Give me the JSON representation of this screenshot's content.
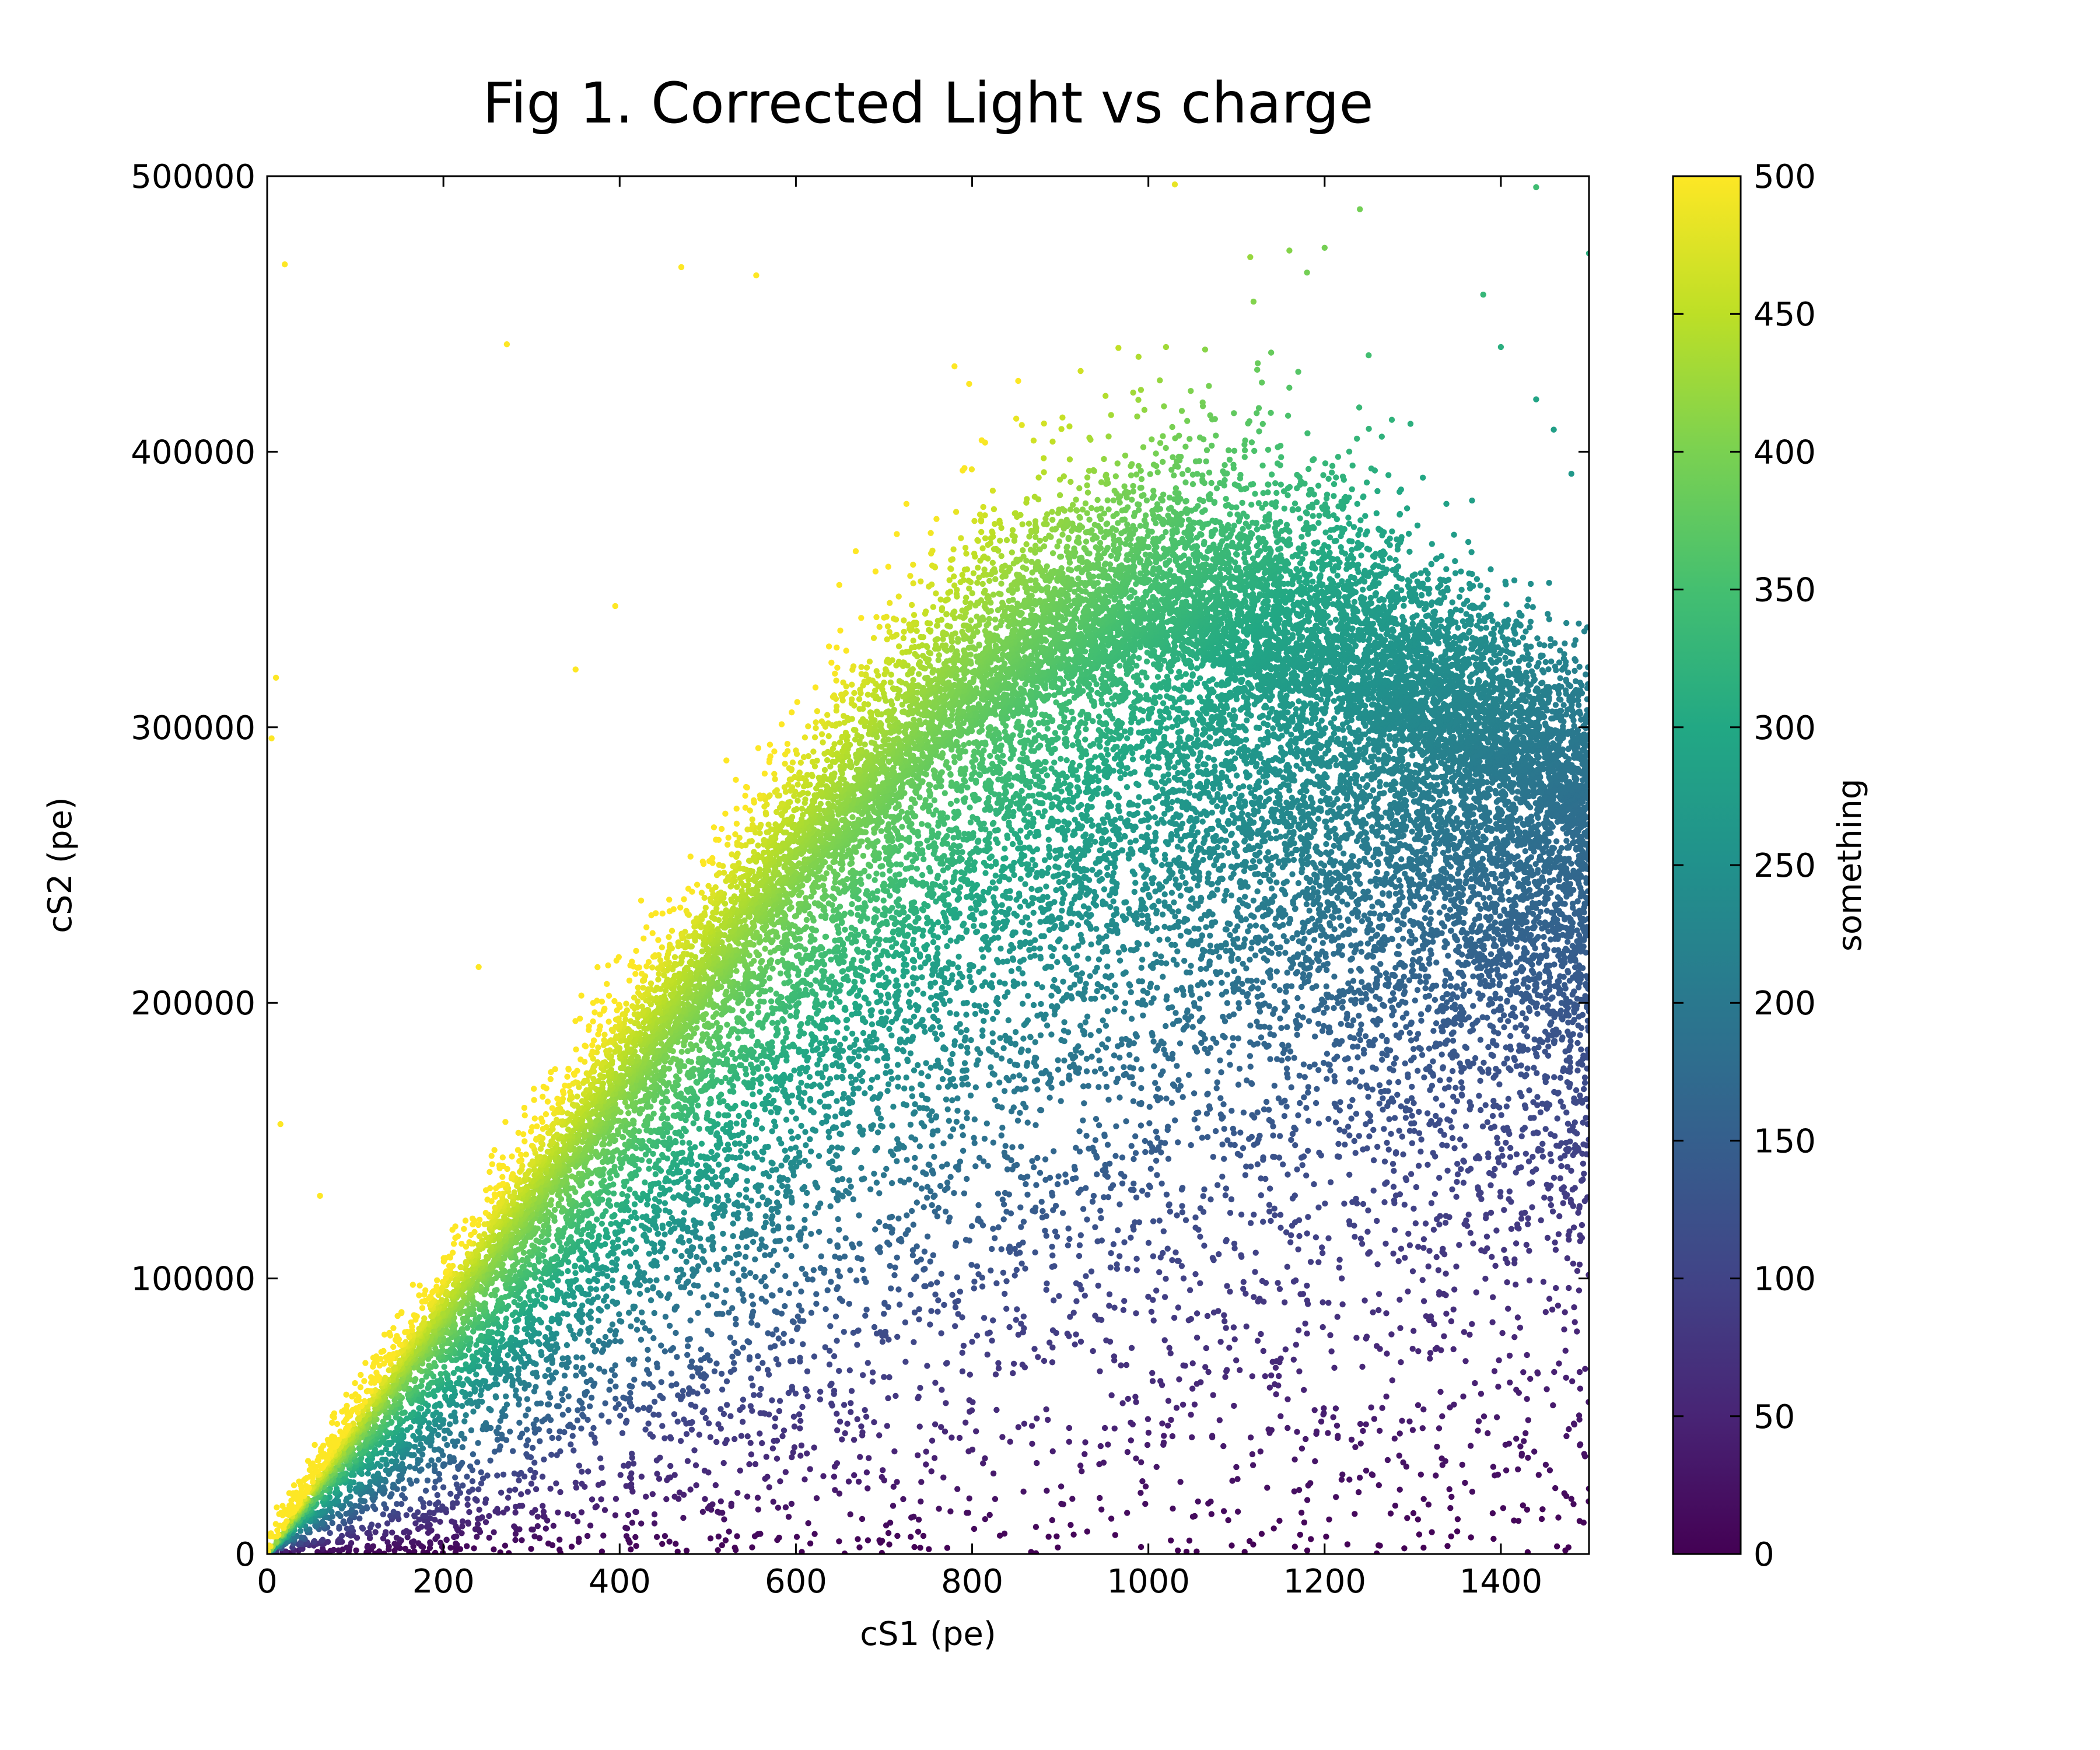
{
  "chart_data": {
    "type": "scatter",
    "title": "Fig 1. Corrected Light vs charge",
    "xlabel": "cS1 (pe)",
    "ylabel": "cS2 (pe)",
    "xlim": [
      0,
      1500
    ],
    "ylim": [
      0,
      500000
    ],
    "xticks": [
      "0",
      "200",
      "400",
      "600",
      "800",
      "1000",
      "1200",
      "1400"
    ],
    "xtick_values": [
      0,
      200,
      400,
      600,
      800,
      1000,
      1200,
      1400
    ],
    "yticks": [
      "0",
      "100000",
      "200000",
      "300000",
      "400000",
      "500000"
    ],
    "ytick_values": [
      0,
      100000,
      200000,
      300000,
      400000,
      500000
    ],
    "grid": false,
    "colorbar": {
      "label": "something",
      "range": [
        0,
        500
      ],
      "ticks": [
        "0",
        "50",
        "100",
        "150",
        "200",
        "250",
        "300",
        "350",
        "400",
        "450",
        "500"
      ],
      "tick_values": [
        0,
        50,
        100,
        150,
        200,
        250,
        300,
        350,
        400,
        450,
        500
      ],
      "colormap": "viridis"
    },
    "colormap_stops": [
      "#440154",
      "#482475",
      "#414487",
      "#355f8d",
      "#2a788e",
      "#21918c",
      "#22a884",
      "#44bf70",
      "#7ad151",
      "#bddf26",
      "#fde725"
    ],
    "point_distribution": {
      "ridge_points": [
        [
          0,
          0
        ],
        [
          200,
          80000
        ],
        [
          400,
          160000
        ],
        [
          600,
          240000
        ],
        [
          800,
          300000
        ],
        [
          1000,
          330000
        ],
        [
          1200,
          310000
        ],
        [
          1400,
          280000
        ],
        [
          1500,
          260000
        ]
      ],
      "upper_edge_points": [
        [
          0,
          10000
        ],
        [
          200,
          110000
        ],
        [
          400,
          210000
        ],
        [
          600,
          300000
        ],
        [
          800,
          380000
        ],
        [
          1000,
          410000
        ],
        [
          1200,
          400000
        ],
        [
          1400,
          350000
        ],
        [
          1500,
          330000
        ]
      ],
      "lower_edge_points": [
        [
          0,
          0
        ],
        [
          200,
          20000
        ],
        [
          400,
          60000
        ],
        [
          600,
          100000
        ],
        [
          800,
          140000
        ],
        [
          1000,
          160000
        ],
        [
          1200,
          170000
        ],
        [
          1400,
          160000
        ],
        [
          1500,
          150000
        ]
      ],
      "color_relation": "color ~ 1000 * cS2 / cS1 / 100 (points above ridge yellow, below dark purple)",
      "count": 26000
    },
    "outliers": [
      [
        20,
        468000
      ],
      [
        470,
        467000
      ],
      [
        555,
        464000
      ],
      [
        272,
        439000
      ],
      [
        395,
        344000
      ],
      [
        350,
        321000
      ],
      [
        10,
        318000
      ],
      [
        5,
        296000
      ],
      [
        240,
        213000
      ],
      [
        15,
        156000
      ],
      [
        60,
        130000
      ],
      [
        1030,
        497000
      ],
      [
        1440,
        496000
      ],
      [
        1240,
        488000
      ],
      [
        1200,
        474000
      ],
      [
        1500,
        472000
      ],
      [
        1160,
        473000
      ],
      [
        1180,
        465000
      ],
      [
        1380,
        457000
      ],
      [
        1440,
        419000
      ],
      [
        1400,
        438000
      ],
      [
        850,
        412000
      ],
      [
        1460,
        408000
      ],
      [
        1480,
        392000
      ],
      [
        1020,
        438000
      ],
      [
        1250,
        435000
      ],
      [
        780,
        431000
      ],
      [
        1050,
        60000
      ],
      [
        1150,
        50000
      ],
      [
        1300,
        45000
      ],
      [
        1420,
        12000
      ],
      [
        1480,
        20000
      ],
      [
        1490,
        60000
      ],
      [
        1330,
        95000
      ],
      [
        1360,
        70000
      ],
      [
        1410,
        72000
      ],
      [
        1180,
        80000
      ]
    ]
  }
}
